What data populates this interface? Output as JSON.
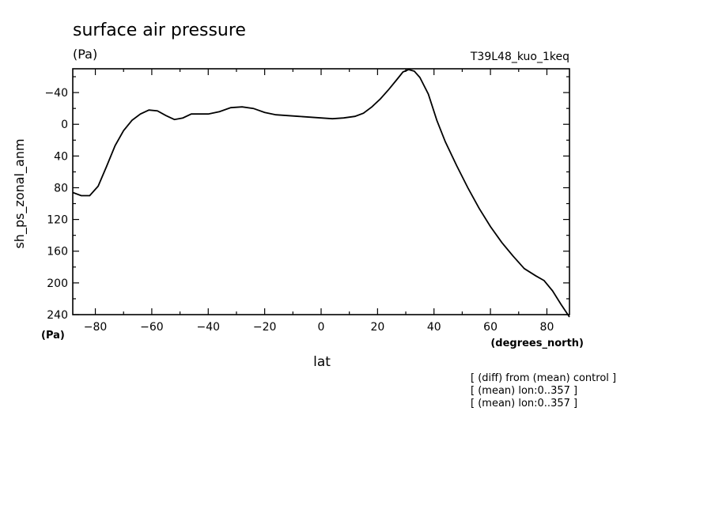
{
  "header": {
    "title": "surface air pressure",
    "units": "(Pa)",
    "run_label": "T39L48_kuo_1keq"
  },
  "notes": [
    "[ (diff) from (mean) control ]",
    "[ (mean) lon:0..357 ]",
    "[ (mean) lon:0..357 ]"
  ],
  "chart_data": {
    "type": "line",
    "title": "surface air pressure",
    "xlabel": "lat",
    "xunit": "(degrees_north)",
    "ylabel": "sh_ps_zonal_anm",
    "yunit": "(Pa)",
    "xlim": [
      -88,
      88
    ],
    "ylim": [
      240,
      -70
    ],
    "x_ticks": [
      -80,
      -60,
      -40,
      -20,
      0,
      20,
      40,
      60,
      80
    ],
    "y_ticks": [
      -40,
      0,
      40,
      80,
      120,
      160,
      200,
      240
    ],
    "grid": false,
    "series": [
      {
        "x": [
          -88,
          -85,
          -82,
          -79,
          -76,
          -73,
          -70,
          -67,
          -64,
          -61,
          -58,
          -55,
          -52,
          -49,
          -46,
          -43,
          -40,
          -36,
          -32,
          -28,
          -24,
          -20,
          -16,
          -12,
          -8,
          -4,
          0,
          4,
          8,
          12,
          15,
          18,
          21,
          24,
          27,
          29,
          31,
          33,
          35,
          38,
          41,
          44,
          48,
          52,
          56,
          60,
          64,
          68,
          72,
          76,
          79,
          82,
          85,
          88
        ],
        "y": [
          86,
          90,
          90,
          78,
          53,
          27,
          8,
          -5,
          -13,
          -18,
          -17,
          -11,
          -6,
          -8,
          -13,
          -13,
          -13,
          -16,
          -21,
          -22,
          -20,
          -15,
          -12,
          -11,
          -10,
          -9,
          -8,
          -7,
          -8,
          -10,
          -14,
          -22,
          -32,
          -44,
          -57,
          -66,
          -69,
          -67,
          -59,
          -38,
          -5,
          22,
          52,
          80,
          106,
          129,
          149,
          166,
          182,
          191,
          197,
          210,
          227,
          243
        ]
      }
    ]
  }
}
